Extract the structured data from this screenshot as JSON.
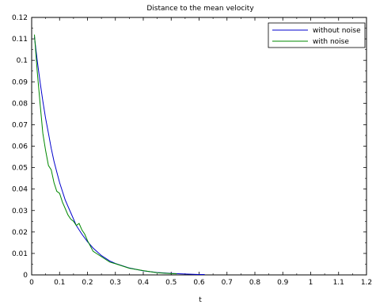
{
  "chart_data": {
    "type": "line",
    "title": "Distance to the mean velocity",
    "xlabel": "t",
    "ylabel": "",
    "xlim": [
      0,
      1.2
    ],
    "ylim": [
      0,
      0.12
    ],
    "x_ticks": [
      0,
      0.1,
      0.2,
      0.3,
      0.4,
      0.5,
      0.6,
      0.7,
      0.8,
      0.9,
      1,
      1.1,
      1.2
    ],
    "x_tick_labels": [
      "0",
      "0.1",
      "0.2",
      "0.3",
      "0.4",
      "0.5",
      "0.6",
      "0.7",
      "0.8",
      "0.9",
      "1",
      "1.1",
      "1.2"
    ],
    "y_ticks": [
      0,
      0.01,
      0.02,
      0.03,
      0.04,
      0.05,
      0.06,
      0.07,
      0.08,
      0.09,
      0.1,
      0.11,
      0.12
    ],
    "y_tick_labels": [
      "0",
      "0.01",
      "0.02",
      "0.03",
      "0.04",
      "0.05",
      "0.06",
      "0.07",
      "0.08",
      "0.09",
      "0.1",
      "0.11",
      "0.12"
    ],
    "grid": false,
    "legend_position": "top-right",
    "series": [
      {
        "name": "without noise",
        "color": "#0000cc",
        "x": [
          0.01,
          0.02,
          0.03,
          0.04,
          0.05,
          0.06,
          0.07,
          0.08,
          0.09,
          0.1,
          0.11,
          0.12,
          0.13,
          0.14,
          0.15,
          0.16,
          0.18,
          0.2,
          0.22,
          0.25,
          0.28,
          0.3,
          0.35,
          0.4,
          0.45,
          0.5,
          0.55,
          0.6,
          0.62
        ],
        "y": [
          0.111,
          0.1,
          0.09,
          0.081,
          0.073,
          0.066,
          0.059,
          0.053,
          0.048,
          0.043,
          0.039,
          0.035,
          0.032,
          0.029,
          0.026,
          0.023,
          0.019,
          0.0155,
          0.0125,
          0.009,
          0.0065,
          0.0053,
          0.0032,
          0.0019,
          0.0011,
          0.0007,
          0.0004,
          0.0002,
          0.0002
        ]
      },
      {
        "name": "with noise",
        "color": "#008800",
        "x": [
          0.01,
          0.02,
          0.03,
          0.04,
          0.05,
          0.06,
          0.07,
          0.08,
          0.09,
          0.1,
          0.11,
          0.12,
          0.13,
          0.14,
          0.15,
          0.16,
          0.17,
          0.18,
          0.19,
          0.2,
          0.22,
          0.25,
          0.28,
          0.3,
          0.35,
          0.4,
          0.45,
          0.5,
          0.52
        ],
        "y": [
          0.112,
          0.095,
          0.08,
          0.066,
          0.058,
          0.051,
          0.049,
          0.043,
          0.039,
          0.038,
          0.034,
          0.031,
          0.028,
          0.026,
          0.025,
          0.023,
          0.024,
          0.021,
          0.019,
          0.016,
          0.011,
          0.0085,
          0.006,
          0.0052,
          0.0031,
          0.002,
          0.001,
          0.0006,
          0.0005
        ]
      }
    ]
  }
}
